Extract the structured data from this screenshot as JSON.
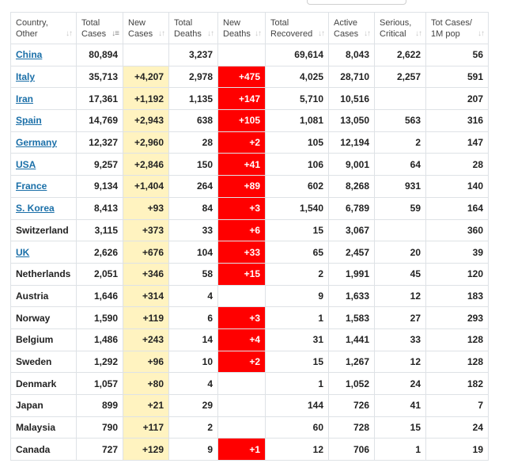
{
  "headers": [
    {
      "line1": "Country,",
      "line2": "Other",
      "active": false
    },
    {
      "line1": "Total",
      "line2": "Cases",
      "active": true
    },
    {
      "line1": "New",
      "line2": "Cases",
      "active": false
    },
    {
      "line1": "Total",
      "line2": "Deaths",
      "active": false
    },
    {
      "line1": "New",
      "line2": "Deaths",
      "active": false
    },
    {
      "line1": "Total",
      "line2": "Recovered",
      "active": false
    },
    {
      "line1": "Active",
      "line2": "Cases",
      "active": false
    },
    {
      "line1": "Serious,",
      "line2": "Critical",
      "active": false
    },
    {
      "line1": "Tot Cases/",
      "line2": "1M pop",
      "active": false
    }
  ],
  "sort_icon": "sort-arrows-icon",
  "colors": {
    "new_cases_bg": "#fff3c0",
    "new_deaths_bg": "#ff0000",
    "link": "#1a6fa8"
  },
  "rows": [
    {
      "country": "China",
      "link": true,
      "total_cases": "80,894",
      "new_cases": "",
      "total_deaths": "3,237",
      "new_deaths": "",
      "total_recovered": "69,614",
      "active_cases": "8,043",
      "serious": "2,622",
      "per_million": "56"
    },
    {
      "country": "Italy",
      "link": true,
      "total_cases": "35,713",
      "new_cases": "+4,207",
      "total_deaths": "2,978",
      "new_deaths": "+475",
      "total_recovered": "4,025",
      "active_cases": "28,710",
      "serious": "2,257",
      "per_million": "591"
    },
    {
      "country": "Iran",
      "link": true,
      "total_cases": "17,361",
      "new_cases": "+1,192",
      "total_deaths": "1,135",
      "new_deaths": "+147",
      "total_recovered": "5,710",
      "active_cases": "10,516",
      "serious": "",
      "per_million": "207"
    },
    {
      "country": "Spain",
      "link": true,
      "total_cases": "14,769",
      "new_cases": "+2,943",
      "total_deaths": "638",
      "new_deaths": "+105",
      "total_recovered": "1,081",
      "active_cases": "13,050",
      "serious": "563",
      "per_million": "316"
    },
    {
      "country": "Germany",
      "link": true,
      "total_cases": "12,327",
      "new_cases": "+2,960",
      "total_deaths": "28",
      "new_deaths": "+2",
      "total_recovered": "105",
      "active_cases": "12,194",
      "serious": "2",
      "per_million": "147"
    },
    {
      "country": "USA",
      "link": true,
      "total_cases": "9,257",
      "new_cases": "+2,846",
      "total_deaths": "150",
      "new_deaths": "+41",
      "total_recovered": "106",
      "active_cases": "9,001",
      "serious": "64",
      "per_million": "28"
    },
    {
      "country": "France",
      "link": true,
      "total_cases": "9,134",
      "new_cases": "+1,404",
      "total_deaths": "264",
      "new_deaths": "+89",
      "total_recovered": "602",
      "active_cases": "8,268",
      "serious": "931",
      "per_million": "140"
    },
    {
      "country": "S. Korea",
      "link": true,
      "total_cases": "8,413",
      "new_cases": "+93",
      "total_deaths": "84",
      "new_deaths": "+3",
      "total_recovered": "1,540",
      "active_cases": "6,789",
      "serious": "59",
      "per_million": "164"
    },
    {
      "country": "Switzerland",
      "link": false,
      "total_cases": "3,115",
      "new_cases": "+373",
      "total_deaths": "33",
      "new_deaths": "+6",
      "total_recovered": "15",
      "active_cases": "3,067",
      "serious": "",
      "per_million": "360"
    },
    {
      "country": "UK",
      "link": true,
      "total_cases": "2,626",
      "new_cases": "+676",
      "total_deaths": "104",
      "new_deaths": "+33",
      "total_recovered": "65",
      "active_cases": "2,457",
      "serious": "20",
      "per_million": "39"
    },
    {
      "country": "Netherlands",
      "link": false,
      "total_cases": "2,051",
      "new_cases": "+346",
      "total_deaths": "58",
      "new_deaths": "+15",
      "total_recovered": "2",
      "active_cases": "1,991",
      "serious": "45",
      "per_million": "120"
    },
    {
      "country": "Austria",
      "link": false,
      "total_cases": "1,646",
      "new_cases": "+314",
      "total_deaths": "4",
      "new_deaths": "",
      "total_recovered": "9",
      "active_cases": "1,633",
      "serious": "12",
      "per_million": "183"
    },
    {
      "country": "Norway",
      "link": false,
      "total_cases": "1,590",
      "new_cases": "+119",
      "total_deaths": "6",
      "new_deaths": "+3",
      "total_recovered": "1",
      "active_cases": "1,583",
      "serious": "27",
      "per_million": "293"
    },
    {
      "country": "Belgium",
      "link": false,
      "total_cases": "1,486",
      "new_cases": "+243",
      "total_deaths": "14",
      "new_deaths": "+4",
      "total_recovered": "31",
      "active_cases": "1,441",
      "serious": "33",
      "per_million": "128"
    },
    {
      "country": "Sweden",
      "link": false,
      "total_cases": "1,292",
      "new_cases": "+96",
      "total_deaths": "10",
      "new_deaths": "+2",
      "total_recovered": "15",
      "active_cases": "1,267",
      "serious": "12",
      "per_million": "128"
    },
    {
      "country": "Denmark",
      "link": false,
      "total_cases": "1,057",
      "new_cases": "+80",
      "total_deaths": "4",
      "new_deaths": "",
      "total_recovered": "1",
      "active_cases": "1,052",
      "serious": "24",
      "per_million": "182"
    },
    {
      "country": "Japan",
      "link": false,
      "total_cases": "899",
      "new_cases": "+21",
      "total_deaths": "29",
      "new_deaths": "",
      "total_recovered": "144",
      "active_cases": "726",
      "serious": "41",
      "per_million": "7"
    },
    {
      "country": "Malaysia",
      "link": false,
      "total_cases": "790",
      "new_cases": "+117",
      "total_deaths": "2",
      "new_deaths": "",
      "total_recovered": "60",
      "active_cases": "728",
      "serious": "15",
      "per_million": "24"
    },
    {
      "country": "Canada",
      "link": false,
      "total_cases": "727",
      "new_cases": "+129",
      "total_deaths": "9",
      "new_deaths": "+1",
      "total_recovered": "12",
      "active_cases": "706",
      "serious": "1",
      "per_million": "19"
    }
  ]
}
